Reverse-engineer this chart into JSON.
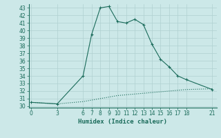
{
  "xlabel": "Humidex (Indice chaleur)",
  "background_color": "#cce8e8",
  "line_color": "#1a6b5a",
  "grid_color": "#b0d0d0",
  "x_ticks": [
    0,
    3,
    6,
    7,
    8,
    9,
    10,
    11,
    12,
    13,
    14,
    15,
    16,
    17,
    18,
    21
  ],
  "ylim": [
    29.8,
    43.5
  ],
  "xlim": [
    -0.3,
    21.5
  ],
  "series1_x": [
    0,
    3,
    6,
    7,
    8,
    9,
    10,
    11,
    12,
    13,
    14,
    15,
    16,
    17,
    18,
    21
  ],
  "series1_y": [
    30.5,
    30.3,
    34.0,
    39.5,
    43.0,
    43.2,
    41.2,
    41.0,
    41.5,
    40.8,
    38.2,
    36.2,
    35.2,
    34.0,
    33.5,
    32.2
  ],
  "series2_x": [
    0,
    3,
    6,
    7,
    8,
    9,
    10,
    11,
    12,
    13,
    14,
    15,
    16,
    17,
    18,
    21
  ],
  "series2_y": [
    30.5,
    30.3,
    30.6,
    30.8,
    31.0,
    31.2,
    31.4,
    31.5,
    31.6,
    31.7,
    31.8,
    31.9,
    32.0,
    32.1,
    32.2,
    32.3
  ],
  "ytick_min": 30,
  "ytick_max": 43,
  "xlabel_fontsize": 6.5,
  "tick_fontsize": 5.5
}
